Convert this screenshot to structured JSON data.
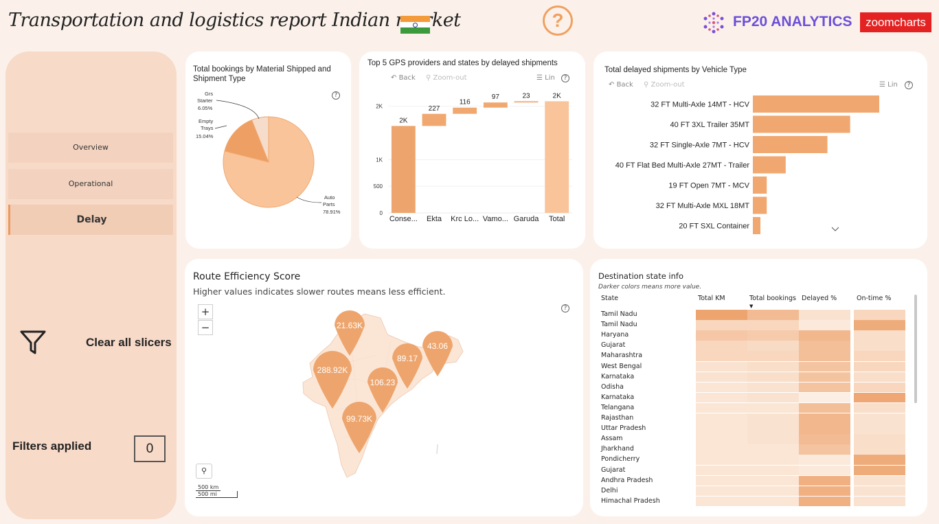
{
  "header": {
    "title": "Transportation and logistics report Indian market",
    "help_symbol": "?",
    "brand": "FP20 ANALYTICS",
    "partner": "zoomcharts"
  },
  "sidebar": {
    "nav": [
      {
        "label": "Overview",
        "active": false
      },
      {
        "label": "Operational",
        "active": false
      },
      {
        "label": "Delay",
        "active": true
      }
    ],
    "clear_label": "Clear all slicers",
    "filters_label": "Filters applied",
    "filters_count": "0"
  },
  "toolbar": {
    "back": "Back",
    "zoom_out": "Zoom-out",
    "lin": "Lin"
  },
  "pie_card": {
    "title_line1": "Total bookings by Material Shipped and",
    "title_line2": "Shipment Type",
    "chart_data": {
      "type": "pie",
      "slices": [
        {
          "name": "Auto Parts",
          "label_line1": "Auto",
          "label_line2": "Parts",
          "pct_label": "78.91%",
          "value": 78.91,
          "color": "#f9c49a"
        },
        {
          "name": "Empty Trays",
          "label_line1": "Empty",
          "label_line2": "Trays",
          "pct_label": "15.04%",
          "value": 15.04,
          "color": "#ee9f64"
        },
        {
          "name": "Grs Starter",
          "label_line1": "Grs",
          "label_line2": "Starter",
          "pct_label": "6.05%",
          "value": 6.05,
          "color": "#f6dcca"
        }
      ]
    }
  },
  "waterfall_card": {
    "title": "Top 5 GPS providers and states by delayed shipments",
    "chart_data": {
      "type": "bar",
      "subtype": "waterfall",
      "categories": [
        "Conse...",
        "Ekta",
        "Krc Lo...",
        "Vamo...",
        "Garuda",
        "Total"
      ],
      "values": [
        1630,
        227,
        116,
        97,
        23,
        2093
      ],
      "data_labels": [
        "2K",
        "227",
        "116",
        "97",
        "23",
        "2K"
      ],
      "y_ticks": [
        {
          "value": 0,
          "label": "0"
        },
        {
          "value": 500,
          "label": "500"
        },
        {
          "value": 1000,
          "label": "1K"
        },
        {
          "value": 2000,
          "label": "2K"
        }
      ],
      "ylim": [
        0,
        2150
      ],
      "colors": {
        "start": "#eda56d",
        "step": "#f0a870",
        "total": "#f9c49a"
      }
    }
  },
  "vehicle_card": {
    "title": "Total delayed shipments by Vehicle Type",
    "chart_data": {
      "type": "bar",
      "orientation": "horizontal",
      "categories": [
        "32 FT Multi-Axle 14MT - HCV",
        "40 FT 3XL Trailer 35MT",
        "32 FT Single-Axle 7MT - HCV",
        "40 FT Flat Bed Multi-Axle 27MT - Trailer",
        "19 FT Open 7MT - MCV",
        "32 FT Multi-Axle MXL 18MT",
        "20 FT SXL Container"
      ],
      "values": [
        100,
        77,
        59,
        26,
        11,
        11,
        6
      ],
      "color": "#f0a870"
    }
  },
  "route_card": {
    "title": "Route Efficiency Score",
    "subtitle": "Higher values indicates slower routes means less efficient.",
    "zoom_in": "+",
    "zoom_out": "−",
    "scale_km": "500 km",
    "scale_mi": "500 mi",
    "pins": [
      {
        "label": "21.63K"
      },
      {
        "label": "288.92K"
      },
      {
        "label": "106.23"
      },
      {
        "label": "89.17"
      },
      {
        "label": "43.06"
      },
      {
        "label": "99.73K"
      }
    ]
  },
  "dest_card": {
    "title": "Destination state info",
    "subtitle": "Darker colors means  more value.",
    "columns": [
      "State",
      "Total KM",
      "Total bookings",
      "Delayed %",
      "On-time %"
    ],
    "rows": [
      {
        "state": "Tamil Nadu",
        "shades": [
          0.95,
          0.65,
          0.15,
          0.3
        ]
      },
      {
        "state": "Tamil Nadu",
        "shades": [
          0.3,
          0.3,
          0.05,
          0.85
        ]
      },
      {
        "state": "Haryana",
        "shades": [
          0.5,
          0.45,
          0.7,
          0.2
        ]
      },
      {
        "state": "Gujarat",
        "shades": [
          0.3,
          0.25,
          0.6,
          0.2
        ]
      },
      {
        "state": "Maharashtra",
        "shades": [
          0.3,
          0.3,
          0.6,
          0.3
        ]
      },
      {
        "state": "West Bengal",
        "shades": [
          0.15,
          0.2,
          0.55,
          0.3
        ]
      },
      {
        "state": "Karnataka",
        "shades": [
          0.15,
          0.2,
          0.55,
          0.2
        ]
      },
      {
        "state": "Odisha",
        "shades": [
          0.1,
          0.15,
          0.55,
          0.3
        ]
      },
      {
        "state": "Karnataka",
        "shades": [
          0.1,
          0.15,
          0.0,
          0.9
        ]
      },
      {
        "state": "Telangana",
        "shades": [
          0.1,
          0.1,
          0.6,
          0.2
        ]
      },
      {
        "state": "Rajasthan",
        "shades": [
          0.1,
          0.15,
          0.7,
          0.15
        ]
      },
      {
        "state": "Uttar Pradesh",
        "shades": [
          0.1,
          0.15,
          0.7,
          0.15
        ]
      },
      {
        "state": "Assam",
        "shades": [
          0.1,
          0.15,
          0.65,
          0.2
        ]
      },
      {
        "state": "Jharkhand",
        "shades": [
          0.1,
          0.1,
          0.55,
          0.2
        ]
      },
      {
        "state": "Pondicherry",
        "shades": [
          0.1,
          0.1,
          0.05,
          0.85
        ]
      },
      {
        "state": "Gujarat",
        "shades": [
          0.1,
          0.1,
          0.05,
          0.85
        ]
      },
      {
        "state": "Andhra Pradesh",
        "shades": [
          0.1,
          0.1,
          0.8,
          0.15
        ]
      },
      {
        "state": "Delhi",
        "shades": [
          0.1,
          0.1,
          0.8,
          0.15
        ]
      },
      {
        "state": "Himachal Pradesh",
        "shades": [
          0.1,
          0.1,
          0.8,
          0.15
        ]
      }
    ]
  }
}
